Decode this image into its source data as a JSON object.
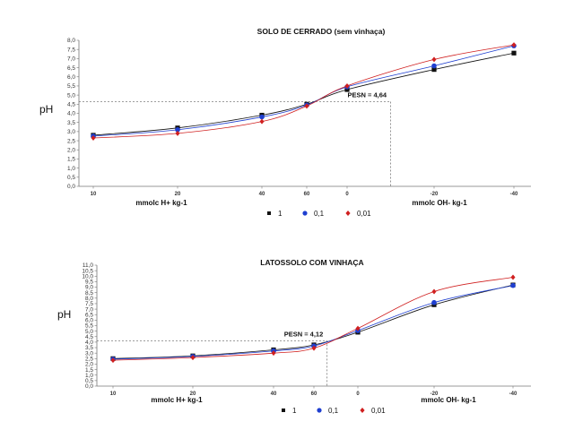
{
  "colors": {
    "s1": "#111111",
    "s2": "#1f3fd0",
    "s3": "#d01f1f",
    "axis": "#777777"
  },
  "legend": [
    "1",
    "0,1",
    "0,01"
  ],
  "chart_data": [
    {
      "type": "scatter",
      "title": "SOLO DE CERRADO (sem vinhaça)",
      "ylabel": "pH",
      "xlabel_left": "mmolc H+ kg-1",
      "xlabel_right": "mmolc OH- kg-1",
      "x_tick_labels": [
        "10",
        "20",
        "40",
        "60",
        "0",
        "-20",
        "-40"
      ],
      "y_tick_labels": [
        "0,0",
        "0,5",
        "1,0",
        "1,5",
        "2,0",
        "2,5",
        "3,0",
        "3,5",
        "4,0",
        "4,5",
        "5,0",
        "5,5",
        "6,0",
        "6,5",
        "7,0",
        "7,5",
        "8,0"
      ],
      "ylim": [
        0,
        8
      ],
      "annotation": "PESN = 4,64",
      "pesn": {
        "x_position": 5.5,
        "y": 4.64
      },
      "legend_position": "bottom",
      "series": [
        {
          "name": "1",
          "marker": "square",
          "x": [
            1,
            2,
            3,
            4,
            5,
            6,
            7
          ],
          "y": [
            2.8,
            3.2,
            3.9,
            4.5,
            5.3,
            6.4,
            7.3
          ]
        },
        {
          "name": "0,1",
          "marker": "circle",
          "x": [
            1,
            2,
            3,
            4,
            5,
            6,
            7
          ],
          "y": [
            2.75,
            3.1,
            3.8,
            4.45,
            5.45,
            6.6,
            7.7
          ]
        },
        {
          "name": "0,01",
          "marker": "diamond",
          "x": [
            1,
            2,
            3,
            4,
            5,
            6,
            7
          ],
          "y": [
            2.65,
            2.9,
            3.55,
            4.4,
            5.5,
            6.95,
            7.75
          ]
        }
      ]
    },
    {
      "type": "scatter",
      "title": "LATOSSOLO COM VINHAÇA",
      "ylabel": "pH",
      "xlabel_left": "mmolc H+ kg-1",
      "xlabel_right": "mmolc OH- kg-1",
      "x_tick_labels": [
        "10",
        "20",
        "40",
        "60",
        "0",
        "-20",
        "-40"
      ],
      "y_tick_labels": [
        "0,0",
        "0,5",
        "1,0",
        "1,5",
        "2,0",
        "2,5",
        "3,0",
        "3,5",
        "4,0",
        "4,5",
        "5,0",
        "5,5",
        "6,0",
        "6,5",
        "7,0",
        "7,5",
        "8,0",
        "8,5",
        "9,0",
        "9,5",
        "10,0",
        "10,5",
        "11,0"
      ],
      "ylim": [
        0,
        11
      ],
      "annotation": "PESN = 4,12",
      "pesn": {
        "x_position": 4.3,
        "y": 4.12
      },
      "legend_position": "bottom",
      "series": [
        {
          "name": "1",
          "marker": "square",
          "x": [
            1,
            2,
            3,
            4,
            5,
            6,
            7
          ],
          "y": [
            2.5,
            2.75,
            3.3,
            3.75,
            4.9,
            7.4,
            9.2
          ]
        },
        {
          "name": "0,1",
          "marker": "circle",
          "x": [
            1,
            2,
            3,
            4,
            5,
            6,
            7
          ],
          "y": [
            2.45,
            2.7,
            3.2,
            3.65,
            5.05,
            7.6,
            9.15
          ]
        },
        {
          "name": "0,01",
          "marker": "diamond",
          "x": [
            1,
            2,
            3,
            4,
            5,
            6,
            7
          ],
          "y": [
            2.35,
            2.6,
            3.0,
            3.45,
            5.25,
            8.6,
            9.9
          ]
        }
      ]
    }
  ]
}
